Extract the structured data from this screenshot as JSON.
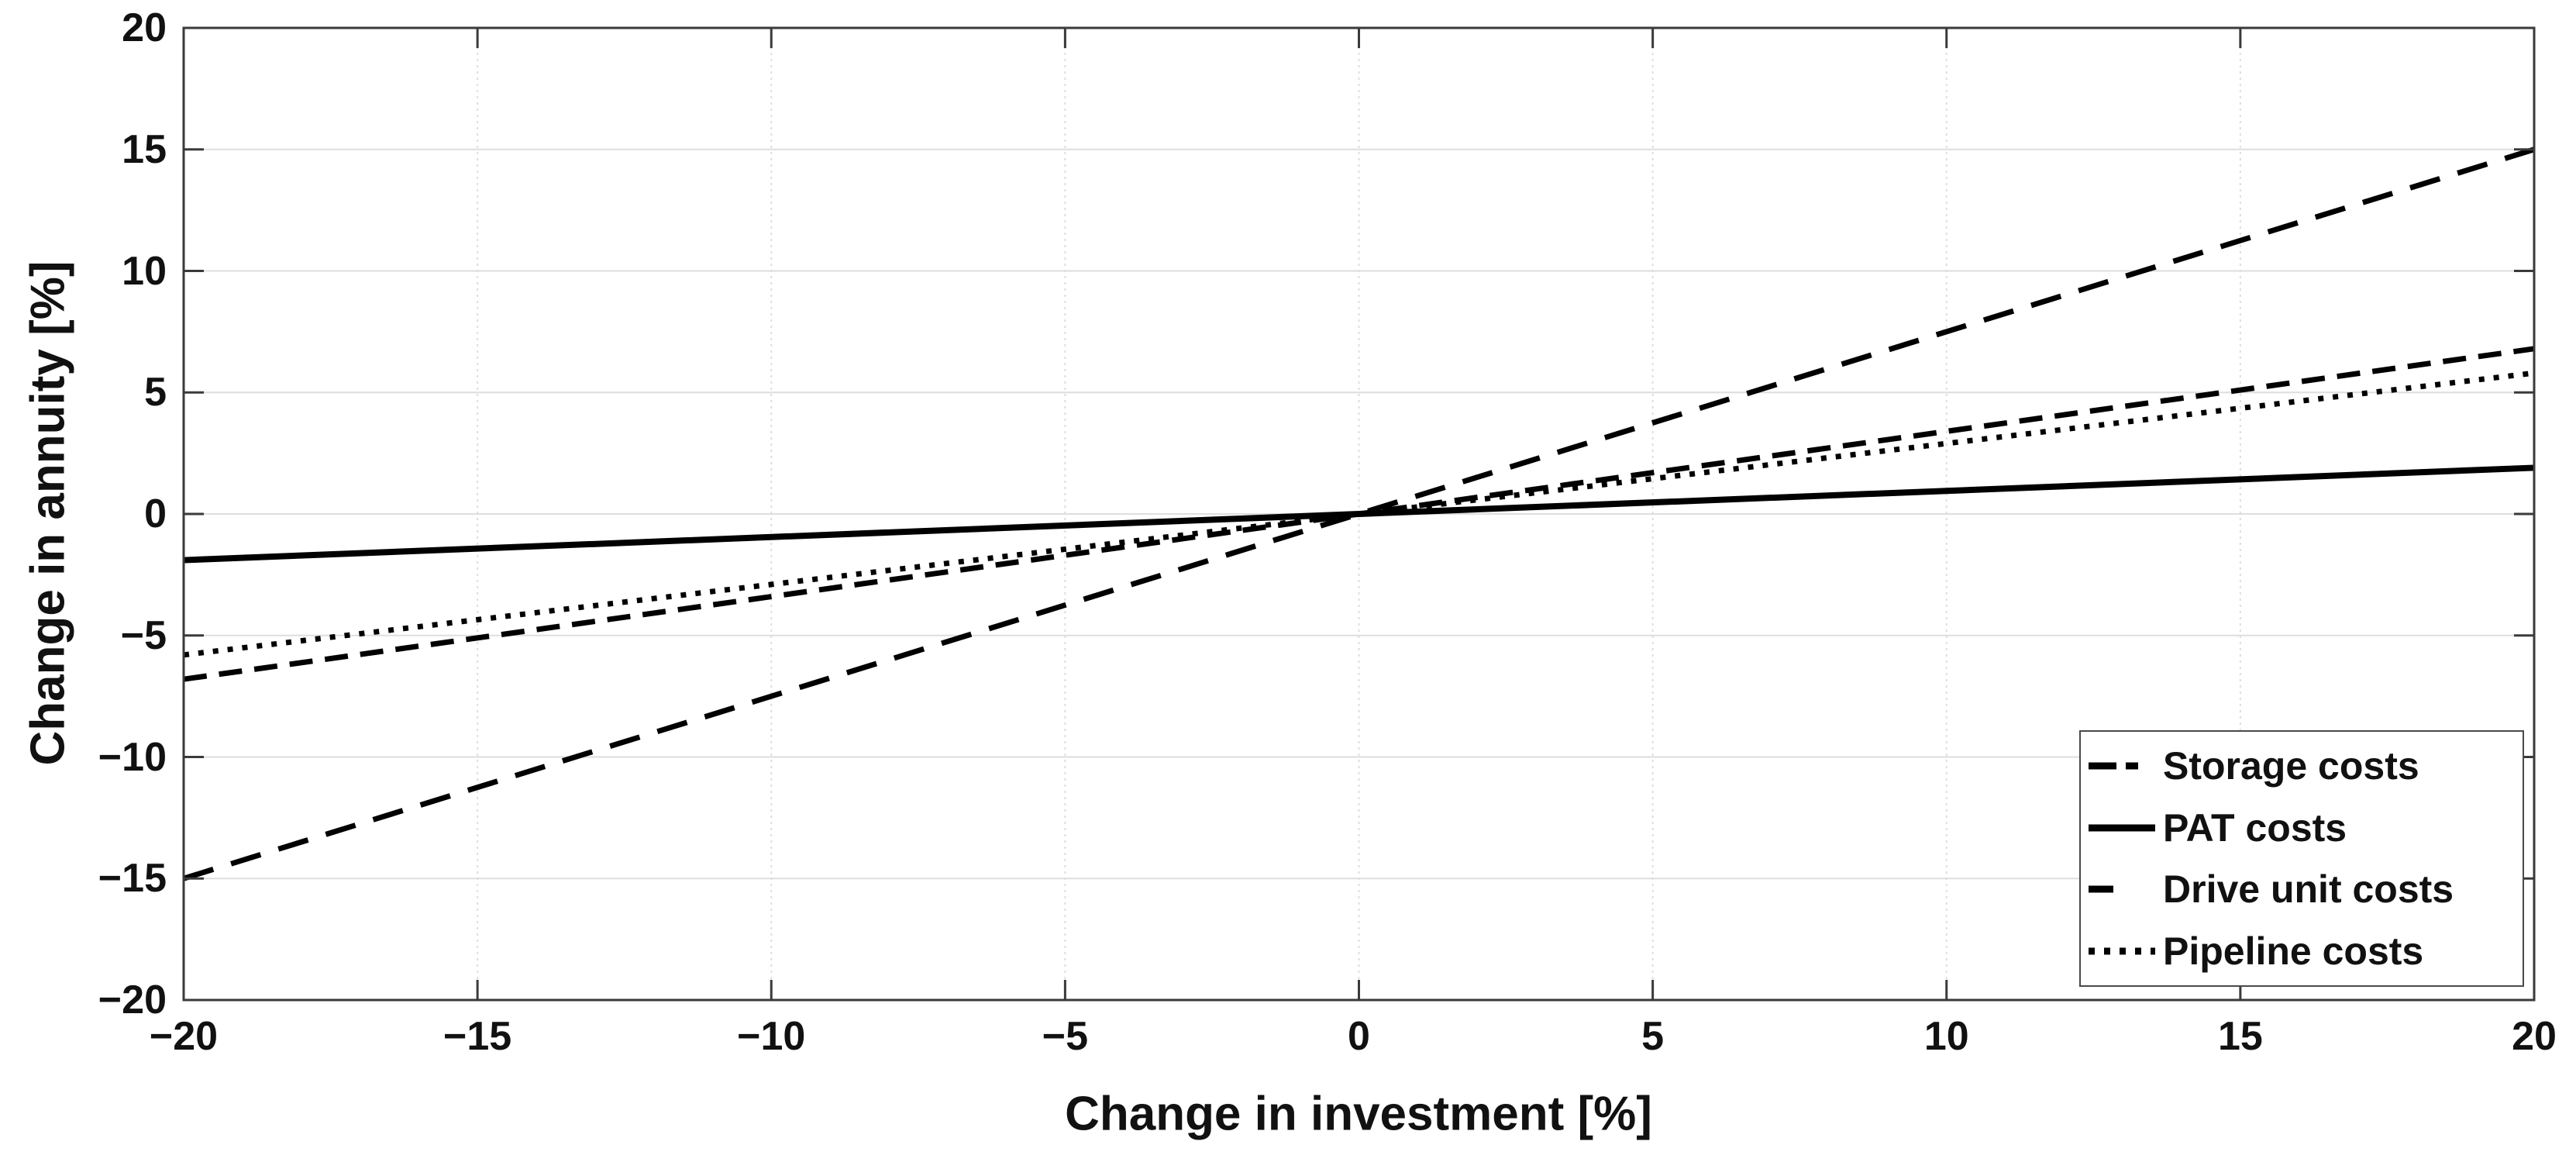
{
  "figure": {
    "background": "#ffffff",
    "title": ""
  },
  "chart_data": {
    "type": "line",
    "title": "",
    "xlabel": "Change in investment [%]",
    "ylabel": "Change in annuity [%]",
    "xlim": [
      -20,
      20
    ],
    "ylim": [
      -20,
      20
    ],
    "xticks": [
      -20,
      -15,
      -10,
      -5,
      0,
      5,
      10,
      15,
      20
    ],
    "yticks": [
      -20,
      -15,
      -10,
      -5,
      0,
      5,
      10,
      15,
      20
    ],
    "xtick_labels": [
      "−20",
      "−15",
      "−10",
      "−5",
      "0",
      "5",
      "10",
      "15",
      "20"
    ],
    "ytick_labels": [
      "−20",
      "−15",
      "−10",
      "−5",
      "0",
      "5",
      "10",
      "15",
      "20"
    ],
    "grid": true,
    "grid_color": "#dedede",
    "axis_color": "#3a3a3a",
    "line_color": "#000000",
    "legend_position": "lower-right",
    "x": [
      -20,
      0,
      20
    ],
    "series": [
      {
        "name": "Storage costs",
        "style": "dashed",
        "values": [
          -15,
          0,
          15
        ],
        "slope_pct_per_pct": 0.75,
        "dash": "40 24",
        "legend_dash": "36 12 16 40",
        "width": 7
      },
      {
        "name": "PAT costs",
        "style": "solid",
        "values": [
          -1.9,
          0,
          1.9
        ],
        "slope_pct_per_pct": 0.095,
        "dash": "",
        "legend_dash": "",
        "width": 8
      },
      {
        "name": "Drive unit costs",
        "style": "dashed-short",
        "values": [
          -6.8,
          0,
          6.8
        ],
        "slope_pct_per_pct": 0.34,
        "dash": "30 16",
        "legend_dash": "32 200",
        "width": 7
      },
      {
        "name": "Pipeline costs",
        "style": "dotted",
        "values": [
          -5.8,
          0,
          5.8
        ],
        "slope_pct_per_pct": 0.29,
        "dash": "7 12",
        "legend_dash": "8 12",
        "width": 7
      }
    ]
  }
}
